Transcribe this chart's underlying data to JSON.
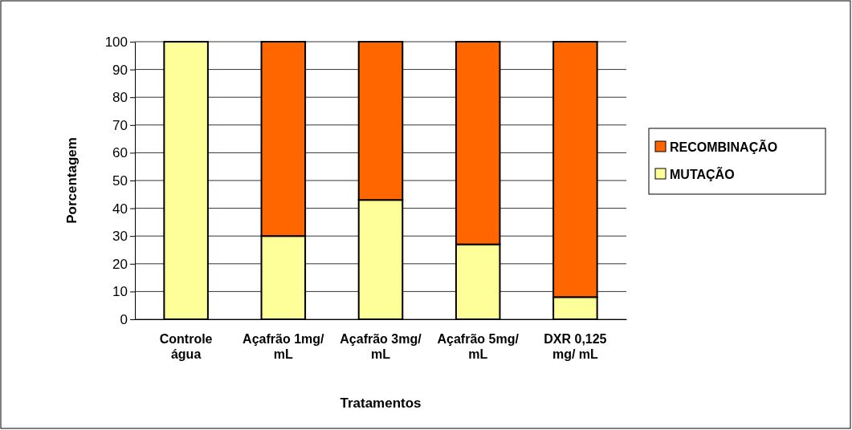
{
  "chart_data": {
    "type": "bar",
    "stacked": true,
    "xlabel": "Tratamentos",
    "ylabel": "Porcentagem",
    "categories": [
      "Controle água",
      "Açafrão 1mg/ mL",
      "Açafrão 3mg/ mL",
      "Açafrão 5mg/ mL",
      "DXR 0,125 mg/ mL"
    ],
    "series": [
      {
        "name": "MUTAÇÃO",
        "color": "#ffff99",
        "values": [
          100,
          30,
          43,
          27,
          8
        ]
      },
      {
        "name": "RECOMBINAÇÃO",
        "color": "#ff6600",
        "values": [
          0,
          70,
          57,
          73,
          92
        ]
      }
    ],
    "ylim": [
      0,
      100
    ],
    "yticks": [
      0,
      10,
      20,
      30,
      40,
      50,
      60,
      70,
      80,
      90,
      100
    ],
    "grid": "y",
    "legend": "right"
  }
}
